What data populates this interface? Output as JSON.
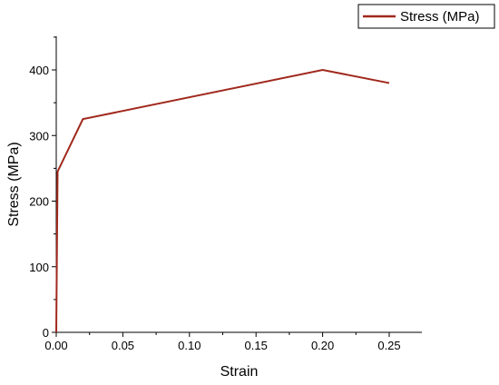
{
  "chart_data": {
    "type": "line",
    "xlabel": "Strain",
    "ylabel": "Stress (MPa)",
    "xlim": [
      0,
      0.25
    ],
    "ylim": [
      0,
      400
    ],
    "x_ticks": [
      0.0,
      0.05,
      0.1,
      0.15,
      0.2,
      0.25
    ],
    "x_tick_labels": [
      "0.00",
      "0.05",
      "0.10",
      "0.15",
      "0.20",
      "0.25"
    ],
    "y_ticks": [
      0,
      100,
      200,
      300,
      400
    ],
    "y_tick_labels": [
      "0",
      "100",
      "200",
      "300",
      "400"
    ],
    "grid": false,
    "legend_position": "top-right",
    "series": [
      {
        "name": "Stress (MPa)",
        "color": "#a0291d",
        "x": [
          0,
          0.001,
          0.02,
          0.2,
          0.25
        ],
        "y": [
          0,
          245,
          325,
          400,
          380
        ]
      }
    ]
  }
}
